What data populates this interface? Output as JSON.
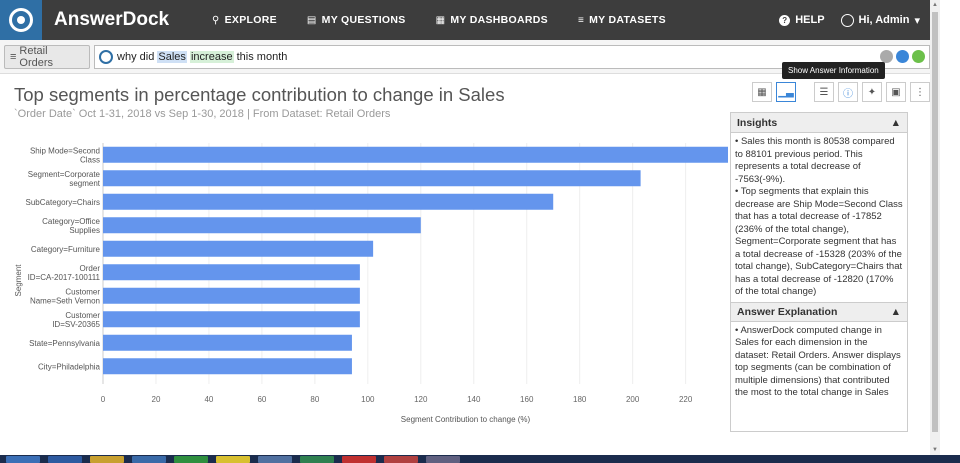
{
  "app": {
    "brand": "AnswerDock"
  },
  "nav": {
    "items": [
      {
        "label": "EXPLORE",
        "icon": "search-icon"
      },
      {
        "label": "MY QUESTIONS",
        "icon": "chat-icon"
      },
      {
        "label": "MY DASHBOARDS",
        "icon": "grid-icon"
      },
      {
        "label": "MY DATASETS",
        "icon": "database-icon"
      }
    ],
    "help": "HELP",
    "user": "Hi, Admin"
  },
  "search": {
    "dataset": "Retail Orders",
    "query_pre": "why did ",
    "query_measure": "Sales",
    "query_space": " ",
    "query_term": "increase",
    "query_post": " this month"
  },
  "tooltip": "Show Answer Information",
  "answer": {
    "title": "Top segments in percentage contribution to change in Sales",
    "subtitle": "`Order Date` Oct 1-31, 2018 vs Sep 1-30, 2018 | From Dataset: Retail Orders"
  },
  "insights": {
    "header": "Insights",
    "text1": "• Sales this month is 80538 compared to 88101 previous period. This represents a total decrease of -7563(-9%).",
    "text2": "• Top segments that explain this decrease are Ship Mode=Second Class that has a total decrease of -17852 (236% of the total change), Segment=Corporate segment that has a total decrease of -15328 (203% of the total change), SubCategory=Chairs that has a total decrease of -12820 (170% of the total change)"
  },
  "explanation": {
    "header": "Answer Explanation",
    "text": "• AnswerDock computed change in Sales for each dimension in the dataset: Retail Orders. Answer displays top segments (can be combination of multiple dimensions) that contributed the most to the total change in Sales"
  },
  "chart_data": {
    "type": "bar",
    "orientation": "horizontal",
    "categories": [
      [
        "Ship Mode=Second",
        "Class"
      ],
      [
        "Segment=Corporate",
        "segment"
      ],
      [
        "SubCategory=Chairs"
      ],
      [
        "Category=Office",
        "Supplies"
      ],
      [
        "Category=Furniture"
      ],
      [
        "Order",
        "ID=CA-2017-100111"
      ],
      [
        "Customer",
        "Name=Seth Vernon"
      ],
      [
        "Customer",
        "ID=SV-20365"
      ],
      [
        "State=Pennsylvania"
      ],
      [
        "City=Philadelphia"
      ]
    ],
    "values": [
      236,
      203,
      170,
      120,
      102,
      97,
      97,
      97,
      94,
      94
    ],
    "xlabel": "Segment Contribution to change (%)",
    "ylabel": "Segment",
    "xticks": [
      0,
      20,
      40,
      60,
      80,
      100,
      120,
      140,
      160,
      180,
      200,
      220
    ],
    "xlim": [
      0,
      236
    ],
    "bar_color": "#6495ed",
    "grid": true
  }
}
